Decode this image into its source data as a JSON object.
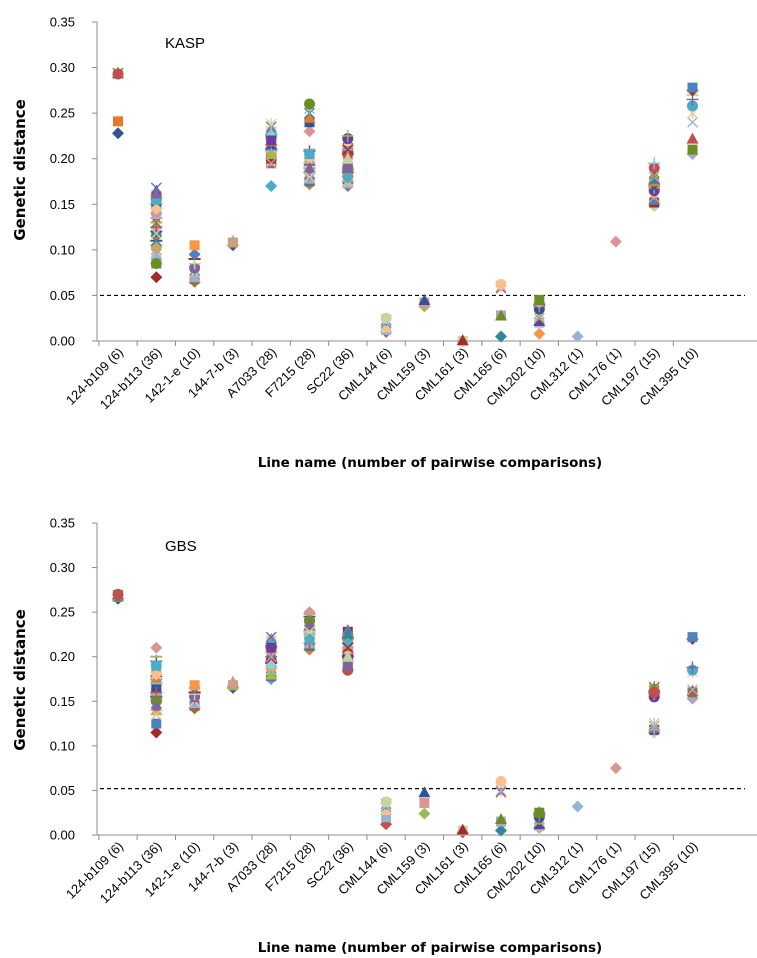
{
  "figure": {
    "colors": [
      "#2F5597",
      "#A52A2A",
      "#6B8E23",
      "#6A3D9A",
      "#4BACC6",
      "#E57B2A",
      "#4F81BD",
      "#C0504D",
      "#9BBB59",
      "#8064A2",
      "#31859C",
      "#F79646",
      "#95B3D7",
      "#D99694",
      "#C3D69B",
      "#B3A2C7",
      "#92CDDC",
      "#FAC090"
    ],
    "marker_cycle": [
      "diamond",
      "square",
      "triangle",
      "x",
      "asterisk",
      "circle",
      "plus",
      "dash"
    ]
  },
  "chart_data": [
    {
      "type": "scatter",
      "title": "KASP",
      "xlabel": "Line name (number of pairwise comparisons)",
      "ylabel": "Genetic distance",
      "ylim": [
        0,
        0.35
      ],
      "yticks": [
        "0.00",
        "0.05",
        "0.10",
        "0.15",
        "0.20",
        "0.25",
        "0.30",
        "0.35"
      ],
      "threshold": 0.05,
      "grid": false,
      "categories": [
        "124-b109 (6)",
        "124-b113 (36)",
        "142-1-e (10)",
        "144-7-b (3)",
        "A7033 (28)",
        "F7215 (28)",
        "SC22 (36)",
        "CML144 (6)",
        "CML159 (3)",
        "CML161 (3)",
        "CML165 (6)",
        "CML202 (10)",
        "CML312 (1)",
        "CML176 (1)",
        "CML197 (15)",
        "CML395 (10)"
      ],
      "values": [
        [
          0.228,
          0.241,
          0.294,
          0.293,
          0.294,
          0.293
        ],
        [
          0.07,
          0.085,
          0.09,
          0.095,
          0.1,
          0.103,
          0.105,
          0.11,
          0.115,
          0.12,
          0.125,
          0.13,
          0.135,
          0.14,
          0.145,
          0.15,
          0.155,
          0.16,
          0.165,
          0.168,
          0.1,
          0.09,
          0.12,
          0.13,
          0.14,
          0.15,
          0.16,
          0.11,
          0.095,
          0.085,
          0.125,
          0.135,
          0.145,
          0.155,
          0.162,
          0.118
        ],
        [
          0.065,
          0.068,
          0.07,
          0.075,
          0.078,
          0.08,
          0.085,
          0.09,
          0.095,
          0.105
        ],
        [
          0.105,
          0.108,
          0.11
        ],
        [
          0.17,
          0.195,
          0.198,
          0.2,
          0.203,
          0.205,
          0.208,
          0.21,
          0.212,
          0.214,
          0.216,
          0.218,
          0.22,
          0.222,
          0.224,
          0.226,
          0.228,
          0.23,
          0.232,
          0.235,
          0.238,
          0.2,
          0.21,
          0.215,
          0.225,
          0.22,
          0.205,
          0.195
        ],
        [
          0.172,
          0.175,
          0.178,
          0.18,
          0.183,
          0.185,
          0.188,
          0.19,
          0.193,
          0.195,
          0.198,
          0.2,
          0.203,
          0.205,
          0.208,
          0.21,
          0.23,
          0.24,
          0.245,
          0.25,
          0.255,
          0.26,
          0.185,
          0.195,
          0.2,
          0.205,
          0.19,
          0.18
        ],
        [
          0.17,
          0.173,
          0.175,
          0.178,
          0.18,
          0.183,
          0.185,
          0.188,
          0.19,
          0.192,
          0.195,
          0.197,
          0.2,
          0.202,
          0.205,
          0.207,
          0.21,
          0.212,
          0.215,
          0.217,
          0.22,
          0.222,
          0.225,
          0.175,
          0.18,
          0.185,
          0.19,
          0.195,
          0.2,
          0.205,
          0.21,
          0.215,
          0.18,
          0.19,
          0.2,
          0.21
        ],
        [
          0.01,
          0.012,
          0.015,
          0.02,
          0.023,
          0.025
        ],
        [
          0.038,
          0.042,
          0.045
        ],
        [
          0.0,
          0.0,
          0.001
        ],
        [
          0.005,
          0.028,
          0.028,
          0.058,
          0.06,
          0.062
        ],
        [
          0.008,
          0.02,
          0.022,
          0.025,
          0.03,
          0.035,
          0.038,
          0.04,
          0.042,
          0.045
        ],
        [
          0.005
        ],
        [
          0.109
        ],
        [
          0.148,
          0.152,
          0.155,
          0.158,
          0.162,
          0.165,
          0.168,
          0.17,
          0.172,
          0.175,
          0.178,
          0.18,
          0.185,
          0.19,
          0.195
        ],
        [
          0.205,
          0.21,
          0.222,
          0.24,
          0.25,
          0.258,
          0.265,
          0.27,
          0.275,
          0.278
        ]
      ]
    },
    {
      "type": "scatter",
      "title": "GBS",
      "xlabel": "Line name (number of pairwise comparisons)",
      "ylabel": "Genetic distance",
      "ylim": [
        0,
        0.35
      ],
      "yticks": [
        "0.00",
        "0.05",
        "0.10",
        "0.15",
        "0.20",
        "0.25",
        "0.30",
        "0.35"
      ],
      "threshold": 0.052,
      "grid": false,
      "categories": [
        "124-b109 (6)",
        "124-b113 (36)",
        "142-1-e (10)",
        "144-7-b (3)",
        "A7033 (28)",
        "F7215 (28)",
        "SC22 (36)",
        "CML144 (6)",
        "CML159 (3)",
        "CML161 (3)",
        "CML165 (6)",
        "CML202 (10)",
        "CML312 (1)",
        "CML176 (1)",
        "CML197 (15)",
        "CML395 (10)"
      ],
      "values": [
        [
          0.265,
          0.267,
          0.268,
          0.268,
          0.269,
          0.27
        ],
        [
          0.115,
          0.125,
          0.14,
          0.145,
          0.148,
          0.15,
          0.152,
          0.155,
          0.158,
          0.16,
          0.162,
          0.165,
          0.168,
          0.17,
          0.172,
          0.175,
          0.178,
          0.18,
          0.183,
          0.185,
          0.188,
          0.19,
          0.195,
          0.2,
          0.21,
          0.165,
          0.175,
          0.185,
          0.155,
          0.15,
          0.16,
          0.17,
          0.18,
          0.19,
          0.145,
          0.135
        ],
        [
          0.142,
          0.145,
          0.148,
          0.15,
          0.152,
          0.155,
          0.158,
          0.16,
          0.165,
          0.168
        ],
        [
          0.165,
          0.168,
          0.172
        ],
        [
          0.175,
          0.178,
          0.18,
          0.183,
          0.185,
          0.188,
          0.19,
          0.193,
          0.195,
          0.198,
          0.2,
          0.203,
          0.205,
          0.208,
          0.21,
          0.212,
          0.215,
          0.218,
          0.22,
          0.222,
          0.185,
          0.195,
          0.2,
          0.205,
          0.19,
          0.21,
          0.18,
          0.2
        ],
        [
          0.208,
          0.212,
          0.215,
          0.218,
          0.22,
          0.222,
          0.225,
          0.228,
          0.23,
          0.232,
          0.235,
          0.238,
          0.24,
          0.242,
          0.245,
          0.248,
          0.25,
          0.22,
          0.225,
          0.23,
          0.235,
          0.24,
          0.215,
          0.225,
          0.23,
          0.22,
          0.235,
          0.228
        ],
        [
          0.185,
          0.188,
          0.19,
          0.192,
          0.195,
          0.197,
          0.2,
          0.202,
          0.205,
          0.207,
          0.21,
          0.212,
          0.215,
          0.217,
          0.22,
          0.222,
          0.225,
          0.228,
          0.23,
          0.19,
          0.195,
          0.2,
          0.205,
          0.21,
          0.215,
          0.22,
          0.225,
          0.2,
          0.21,
          0.185,
          0.195,
          0.205,
          0.215,
          0.19,
          0.2,
          0.21
        ],
        [
          0.012,
          0.02,
          0.028,
          0.032,
          0.035,
          0.037
        ],
        [
          0.024,
          0.036,
          0.048
        ],
        [
          0.003,
          0.005,
          0.006
        ],
        [
          0.005,
          0.015,
          0.018,
          0.048,
          0.05,
          0.06
        ],
        [
          0.008,
          0.01,
          0.012,
          0.015,
          0.018,
          0.02,
          0.022,
          0.024,
          0.026,
          0.025
        ],
        [
          0.032
        ],
        [
          0.075
        ],
        [
          0.115,
          0.118,
          0.12,
          0.122,
          0.125,
          0.155,
          0.158,
          0.16,
          0.162,
          0.163,
          0.165,
          0.165,
          0.166,
          0.16,
          0.118
        ],
        [
          0.153,
          0.16,
          0.162,
          0.163,
          0.183,
          0.185,
          0.188,
          0.22,
          0.22,
          0.222
        ]
      ]
    }
  ]
}
